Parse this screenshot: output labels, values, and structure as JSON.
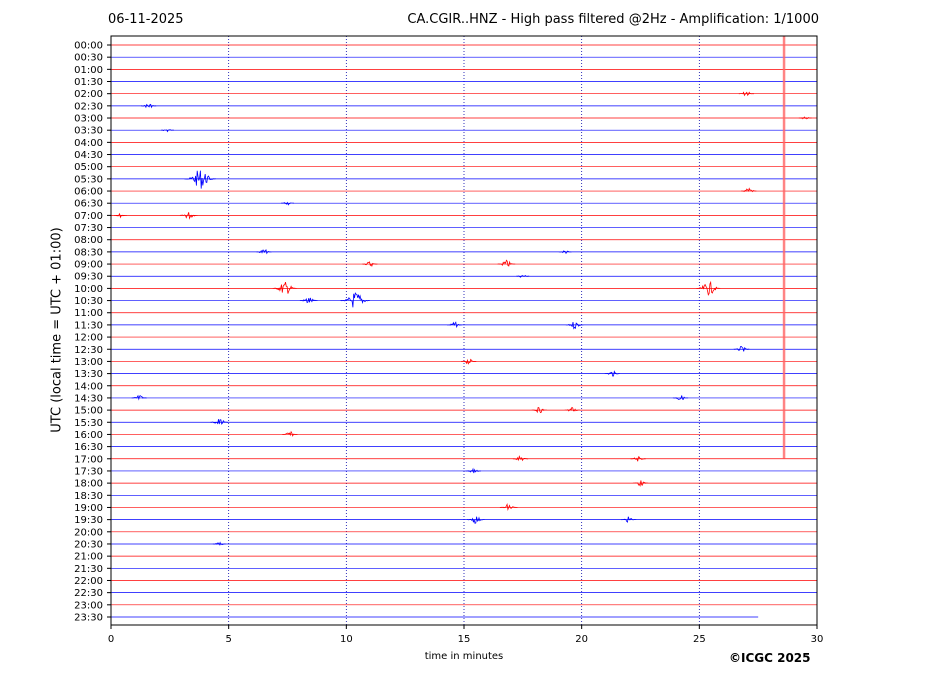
{
  "header": {
    "date": "06-11-2025",
    "title": "CA.CGIR..HNZ - High pass filtered @2Hz - Amplification: 1/1000"
  },
  "footer": {
    "copyright": "©ICGC 2025"
  },
  "colors": {
    "trace_a": "#ff0000",
    "trace_b": "#0000ff",
    "marker": "#ff6666",
    "grid": "#0000aa"
  },
  "chart_data": {
    "type": "line",
    "xlabel": "time in minutes",
    "ylabel": "UTC (local time = UTC + 01:00)",
    "xlim": [
      0,
      30
    ],
    "x_ticks": [
      "0",
      "5",
      "10",
      "15",
      "20",
      "25",
      "30"
    ],
    "y_ticks": [
      "00:00",
      "00:30",
      "01:00",
      "01:30",
      "02:00",
      "02:30",
      "03:00",
      "03:30",
      "04:00",
      "04:30",
      "05:00",
      "05:30",
      "06:00",
      "06:30",
      "07:00",
      "07:30",
      "08:00",
      "08:30",
      "09:00",
      "09:30",
      "10:00",
      "10:30",
      "11:00",
      "11:30",
      "12:00",
      "12:30",
      "13:00",
      "13:30",
      "14:00",
      "14:30",
      "15:00",
      "15:30",
      "16:00",
      "16:30",
      "17:00",
      "17:30",
      "18:00",
      "18:30",
      "19:00",
      "19:30",
      "20:00",
      "20:30",
      "21:00",
      "21:30",
      "22:00",
      "22:30",
      "23:00",
      "23:30"
    ],
    "grid_x_minutes": [
      5,
      10,
      15,
      20,
      25
    ],
    "marker_minute": 28.6,
    "last_trace_end_minute": 27.5,
    "events": [
      {
        "trace": "02:00",
        "minute": 27.0,
        "amp": 3
      },
      {
        "trace": "02:30",
        "minute": 1.6,
        "amp": 3
      },
      {
        "trace": "03:00",
        "minute": 29.5,
        "amp": 2
      },
      {
        "trace": "03:30",
        "minute": 2.4,
        "amp": 2
      },
      {
        "trace": "05:30",
        "minute": 3.8,
        "amp": 10
      },
      {
        "trace": "06:00",
        "minute": 27.1,
        "amp": 3
      },
      {
        "trace": "06:30",
        "minute": 7.5,
        "amp": 2
      },
      {
        "trace": "07:00",
        "minute": 3.3,
        "amp": 4
      },
      {
        "trace": "07:00",
        "minute": 0.4,
        "amp": 2
      },
      {
        "trace": "08:30",
        "minute": 6.5,
        "amp": 3
      },
      {
        "trace": "08:30",
        "minute": 19.3,
        "amp": 2
      },
      {
        "trace": "09:00",
        "minute": 16.8,
        "amp": 4
      },
      {
        "trace": "09:00",
        "minute": 11.0,
        "amp": 3
      },
      {
        "trace": "09:30",
        "minute": 17.5,
        "amp": 2
      },
      {
        "trace": "10:00",
        "minute": 7.4,
        "amp": 7
      },
      {
        "trace": "10:00",
        "minute": 25.4,
        "amp": 7
      },
      {
        "trace": "10:30",
        "minute": 10.4,
        "amp": 9
      },
      {
        "trace": "10:30",
        "minute": 8.4,
        "amp": 4
      },
      {
        "trace": "11:30",
        "minute": 19.7,
        "amp": 4
      },
      {
        "trace": "11:30",
        "minute": 14.6,
        "amp": 3
      },
      {
        "trace": "12:30",
        "minute": 26.8,
        "amp": 3
      },
      {
        "trace": "13:00",
        "minute": 15.2,
        "amp": 3
      },
      {
        "trace": "13:30",
        "minute": 21.3,
        "amp": 3
      },
      {
        "trace": "14:30",
        "minute": 24.2,
        "amp": 3
      },
      {
        "trace": "14:30",
        "minute": 1.2,
        "amp": 3
      },
      {
        "trace": "15:00",
        "minute": 19.6,
        "amp": 3
      },
      {
        "trace": "15:00",
        "minute": 18.2,
        "amp": 3
      },
      {
        "trace": "15:30",
        "minute": 4.6,
        "amp": 4
      },
      {
        "trace": "16:00",
        "minute": 7.6,
        "amp": 3
      },
      {
        "trace": "17:00",
        "minute": 22.4,
        "amp": 3
      },
      {
        "trace": "17:00",
        "minute": 17.4,
        "amp": 3
      },
      {
        "trace": "17:30",
        "minute": 15.4,
        "amp": 3
      },
      {
        "trace": "18:00",
        "minute": 22.5,
        "amp": 3
      },
      {
        "trace": "19:00",
        "minute": 16.9,
        "amp": 4
      },
      {
        "trace": "19:30",
        "minute": 15.5,
        "amp": 4
      },
      {
        "trace": "19:30",
        "minute": 22.0,
        "amp": 3
      },
      {
        "trace": "20:30",
        "minute": 4.6,
        "amp": 2
      }
    ]
  }
}
